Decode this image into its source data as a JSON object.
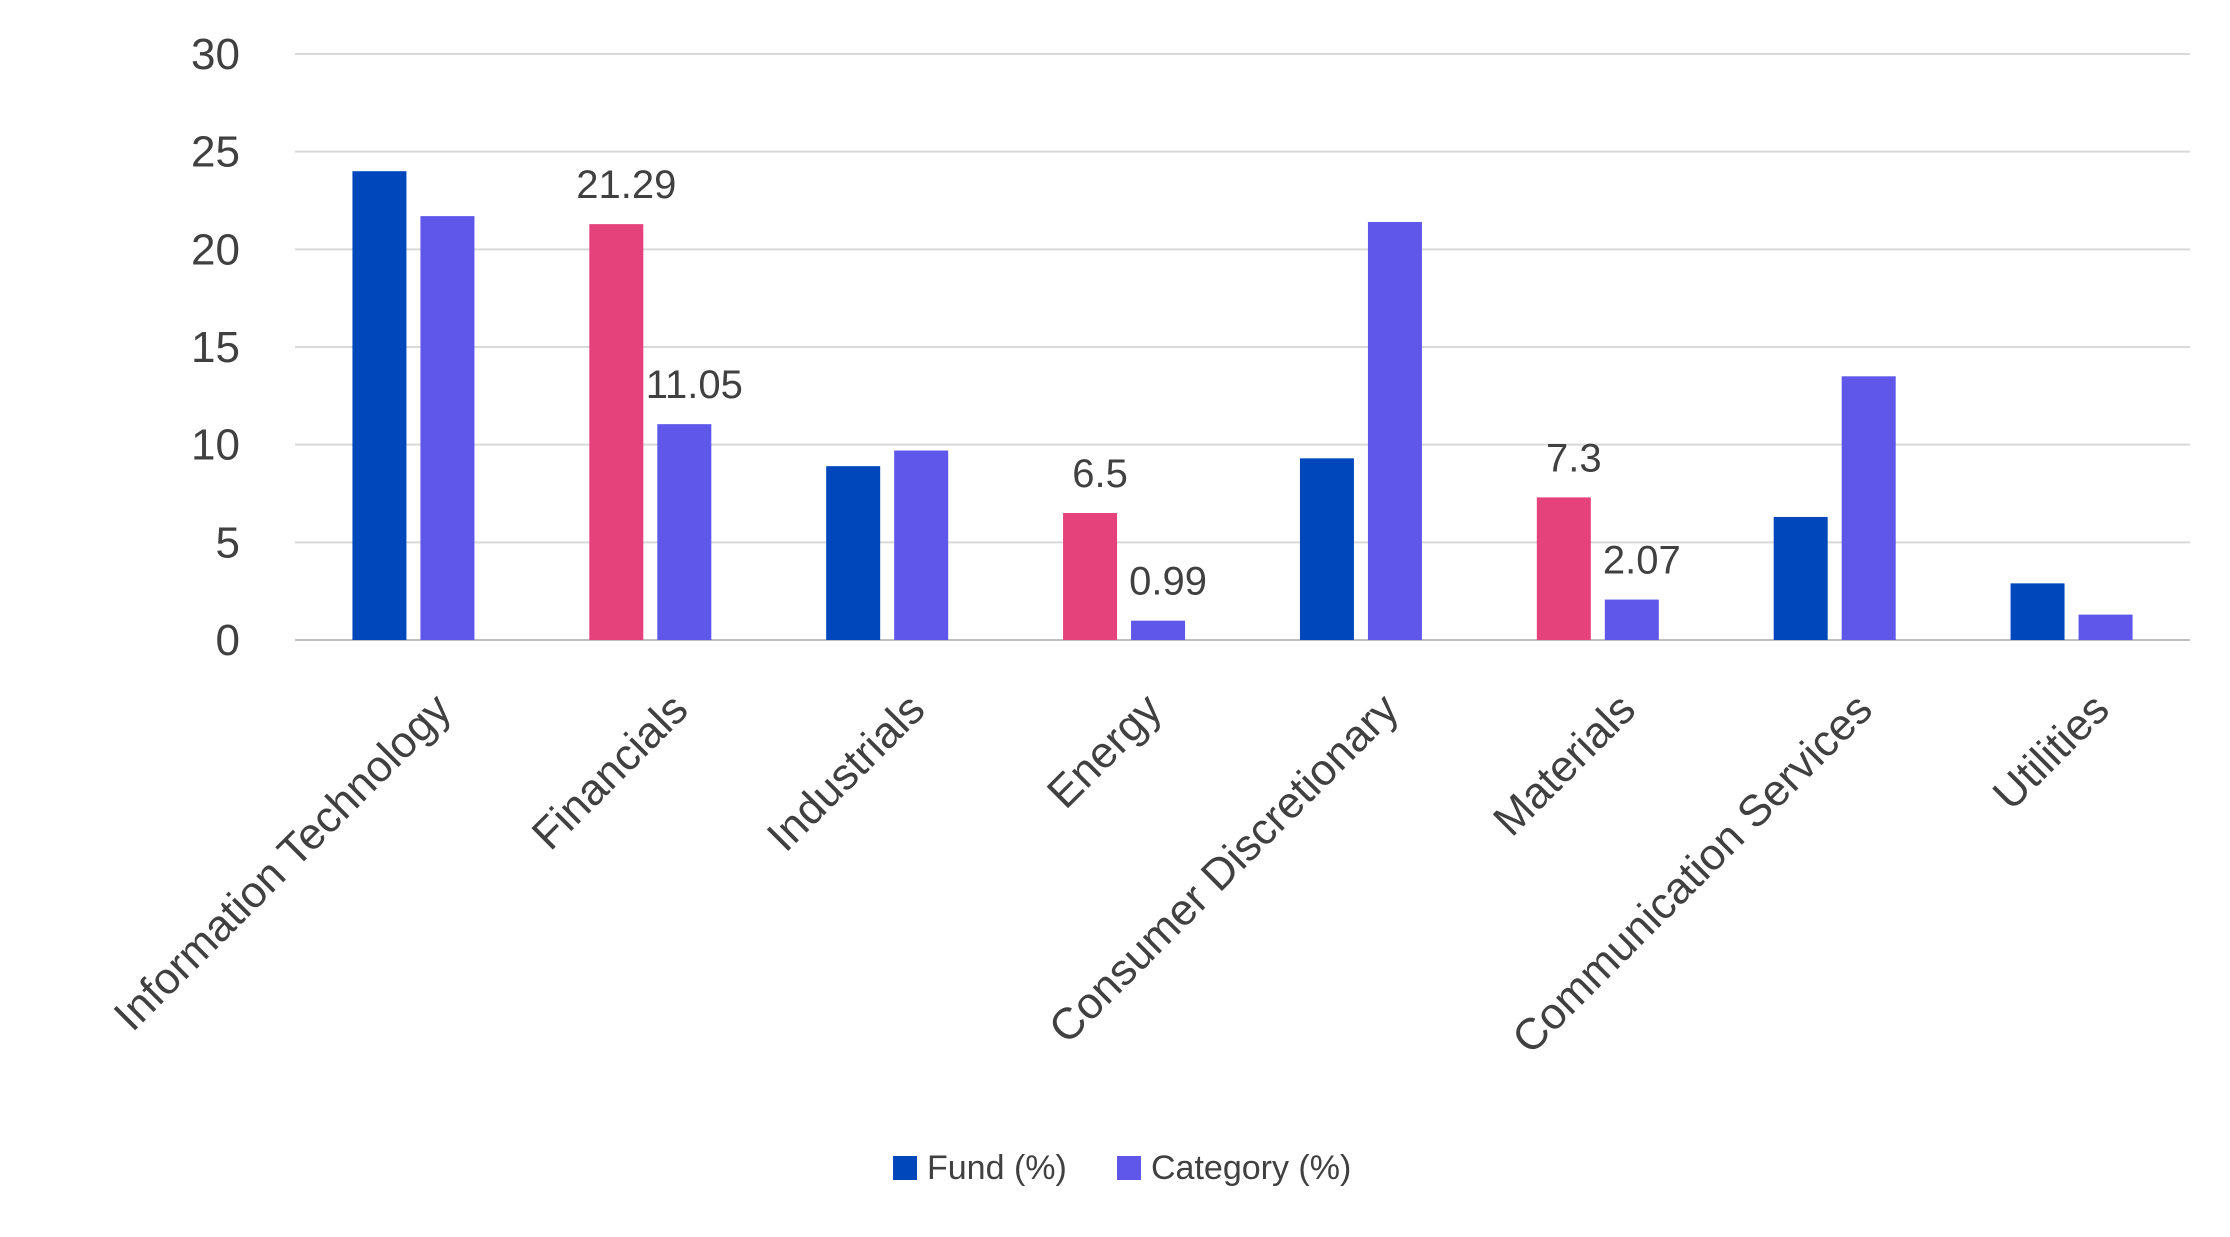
{
  "chart_data": {
    "type": "bar",
    "title": "",
    "xlabel": "",
    "ylabel": "",
    "ylim": [
      0,
      30
    ],
    "yticks": [
      0,
      5,
      10,
      15,
      20,
      25,
      30
    ],
    "grid": true,
    "legend_position": "bottom-center",
    "categories": [
      "Information Technology",
      "Financials",
      "Industrials",
      "Energy",
      "Consumer Discretionary",
      "Materials",
      "Communication Services",
      "Utilities"
    ],
    "series": [
      {
        "name": "Fund (%)",
        "color": "#0047bb",
        "values": [
          24.0,
          21.29,
          8.9,
          6.5,
          9.3,
          7.3,
          6.3,
          2.9
        ]
      },
      {
        "name": "Category (%)",
        "color": "#5e57ea",
        "values": [
          21.7,
          11.05,
          9.7,
          0.99,
          21.4,
          2.07,
          13.5,
          1.3
        ]
      }
    ],
    "highlight": {
      "color": "#e5417a",
      "series_index": 0,
      "categories": [
        "Financials",
        "Energy",
        "Materials"
      ]
    },
    "data_labels": [
      {
        "category": "Financials",
        "series_index": 0,
        "text": "21.29"
      },
      {
        "category": "Financials",
        "series_index": 1,
        "text": "11.05"
      },
      {
        "category": "Energy",
        "series_index": 0,
        "text": "6.5"
      },
      {
        "category": "Energy",
        "series_index": 1,
        "text": "0.99"
      },
      {
        "category": "Materials",
        "series_index": 0,
        "text": "7.3"
      },
      {
        "category": "Materials",
        "series_index": 1,
        "text": "2.07"
      }
    ]
  }
}
